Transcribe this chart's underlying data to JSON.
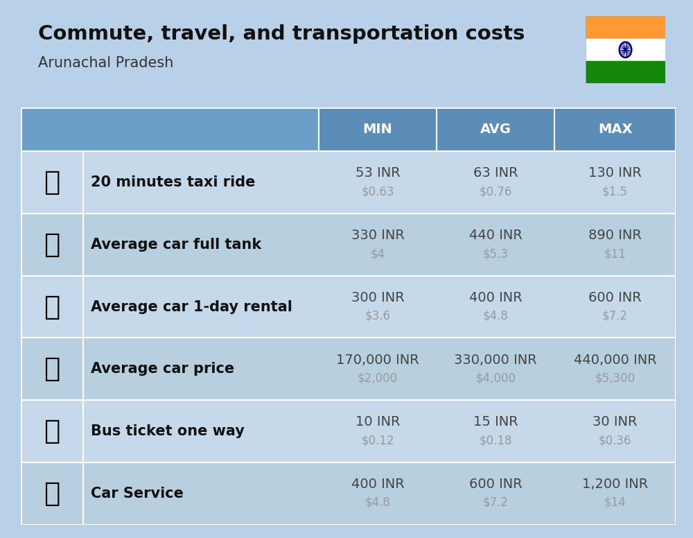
{
  "title": "Commute, travel, and transportation costs",
  "subtitle": "Arunachal Pradesh",
  "bg_color": "#b8d0e8",
  "header_bg": "#5b8db8",
  "header_text_color": "#ffffff",
  "row_bg_even": "#c5d9ea",
  "row_bg_odd": "#b8cfe0",
  "col_headers": [
    "MIN",
    "AVG",
    "MAX"
  ],
  "rows": [
    {
      "label": "20 minutes taxi ride",
      "min_inr": "53 INR",
      "min_usd": "$0.63",
      "avg_inr": "63 INR",
      "avg_usd": "$0.76",
      "max_inr": "130 INR",
      "max_usd": "$1.5"
    },
    {
      "label": "Average car full tank",
      "min_inr": "330 INR",
      "min_usd": "$4",
      "avg_inr": "440 INR",
      "avg_usd": "$5.3",
      "max_inr": "890 INR",
      "max_usd": "$11"
    },
    {
      "label": "Average car 1-day rental",
      "min_inr": "300 INR",
      "min_usd": "$3.6",
      "avg_inr": "400 INR",
      "avg_usd": "$4.8",
      "max_inr": "600 INR",
      "max_usd": "$7.2"
    },
    {
      "label": "Average car price",
      "min_inr": "170,000 INR",
      "min_usd": "$2,000",
      "avg_inr": "330,000 INR",
      "avg_usd": "$4,000",
      "max_inr": "440,000 INR",
      "max_usd": "$5,300"
    },
    {
      "label": "Bus ticket one way",
      "min_inr": "10 INR",
      "min_usd": "$0.12",
      "avg_inr": "15 INR",
      "avg_usd": "$0.18",
      "max_inr": "30 INR",
      "max_usd": "$0.36"
    },
    {
      "label": "Car Service",
      "min_inr": "400 INR",
      "min_usd": "$4.8",
      "avg_inr": "600 INR",
      "avg_usd": "$7.2",
      "max_inr": "1,200 INR",
      "max_usd": "$14"
    }
  ],
  "icon_emojis": [
    "🚕",
    "⛽",
    "🚙",
    "🚗",
    "🚌",
    "🔧🚗"
  ],
  "flag_colors": [
    "#FF9933",
    "#FFFFFF",
    "#138808"
  ],
  "chakra_color": "#000080",
  "inr_color": "#444444",
  "usd_color": "#999999",
  "label_color": "#111111",
  "white": "#ffffff",
  "title_fontsize": 21,
  "subtitle_fontsize": 15,
  "header_fontsize": 14,
  "cell_inr_fontsize": 14,
  "cell_usd_fontsize": 12,
  "label_fontsize": 15,
  "icon_fontsize": 28
}
